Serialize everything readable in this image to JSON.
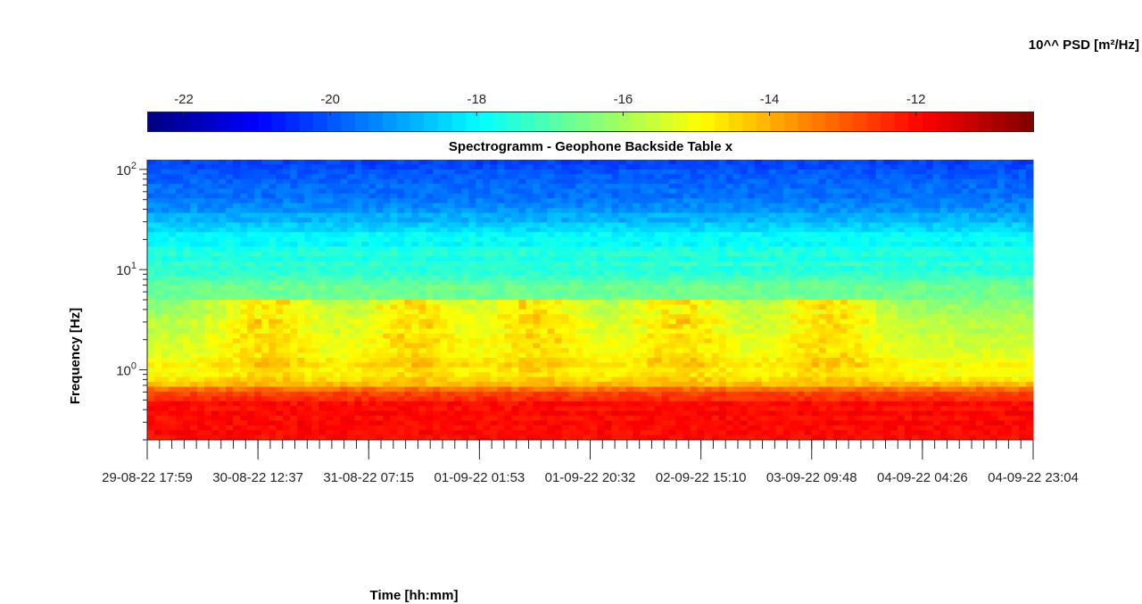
{
  "chart_data": {
    "type": "heatmap",
    "title": "Spectrogramm - Geophone Backside Table x",
    "xlabel": "Time [hh:mm]",
    "ylabel": "Frequency [Hz]",
    "yscale": "log",
    "ylim_hz": [
      0.2,
      125
    ],
    "y_ticks": [
      {
        "value": 1,
        "label": "10",
        "exp": "0"
      },
      {
        "value": 10,
        "label": "10",
        "exp": "1"
      },
      {
        "value": 100,
        "label": "10",
        "exp": "2"
      }
    ],
    "x_ticks": [
      "29-08-22  17:59",
      "30-08-22  12:37",
      "31-08-22  07:15",
      "01-09-22  01:53",
      "01-09-22  20:32",
      "02-09-22  15:10",
      "03-09-22  09:48",
      "04-09-22  04:26",
      "04-09-22  23:04"
    ],
    "colorbar": {
      "title": "10^^ PSD [m²/Hz]",
      "range": [
        -22.5,
        -10.4
      ],
      "ticks": [
        -22,
        -20,
        -18,
        -16,
        -14,
        -12
      ],
      "tick_labels": [
        "-22",
        "-20",
        "-18",
        "-16",
        "-14",
        "-12"
      ],
      "colormap": "jet",
      "orientation": "horizontal",
      "placement": "top"
    },
    "psd_profile_by_frequency": [
      {
        "freq_hz": 0.2,
        "log_psd": -11.9
      },
      {
        "freq_hz": 0.4,
        "log_psd": -11.9
      },
      {
        "freq_hz": 0.6,
        "log_psd": -12.6
      },
      {
        "freq_hz": 0.8,
        "log_psd": -14.8
      },
      {
        "freq_hz": 1.5,
        "log_psd": -15.3
      },
      {
        "freq_hz": 3,
        "log_psd": -15.8
      },
      {
        "freq_hz": 5,
        "log_psd": -16.4
      },
      {
        "freq_hz": 10,
        "log_psd": -17.4
      },
      {
        "freq_hz": 20,
        "log_psd": -17.9
      },
      {
        "freq_hz": 30,
        "log_psd": -18.7
      },
      {
        "freq_hz": 50,
        "log_psd": -19.5
      },
      {
        "freq_hz": 125,
        "log_psd": -20.3
      }
    ],
    "daily_activity_bursts": {
      "freq_range_hz": [
        0.8,
        5
      ],
      "peak_log_psd": -14.2,
      "centers_fraction_of_time_axis": [
        0.135,
        0.3,
        0.44,
        0.6,
        0.77
      ],
      "width_fraction_of_time_axis": 0.06
    },
    "grid": false
  }
}
